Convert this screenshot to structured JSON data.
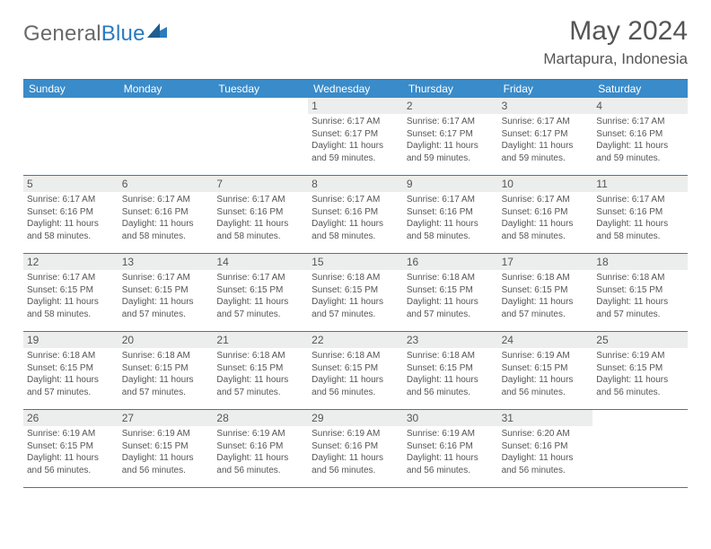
{
  "brand": {
    "general": "General",
    "blue": "Blue"
  },
  "title": "May 2024",
  "location": "Martapura, Indonesia",
  "colors": {
    "header_bg": "#3a8bc9",
    "border": "#3c78aa",
    "daynum_bg": "#eceded",
    "text": "#555555",
    "page_bg": "#ffffff"
  },
  "weekday_labels": [
    "Sunday",
    "Monday",
    "Tuesday",
    "Wednesday",
    "Thursday",
    "Friday",
    "Saturday"
  ],
  "weeks": [
    [
      {
        "n": "",
        "sunrise": "",
        "sunset": "",
        "daylight": ""
      },
      {
        "n": "",
        "sunrise": "",
        "sunset": "",
        "daylight": ""
      },
      {
        "n": "",
        "sunrise": "",
        "sunset": "",
        "daylight": ""
      },
      {
        "n": "1",
        "sunrise": "Sunrise: 6:17 AM",
        "sunset": "Sunset: 6:17 PM",
        "daylight": "Daylight: 11 hours and 59 minutes."
      },
      {
        "n": "2",
        "sunrise": "Sunrise: 6:17 AM",
        "sunset": "Sunset: 6:17 PM",
        "daylight": "Daylight: 11 hours and 59 minutes."
      },
      {
        "n": "3",
        "sunrise": "Sunrise: 6:17 AM",
        "sunset": "Sunset: 6:17 PM",
        "daylight": "Daylight: 11 hours and 59 minutes."
      },
      {
        "n": "4",
        "sunrise": "Sunrise: 6:17 AM",
        "sunset": "Sunset: 6:16 PM",
        "daylight": "Daylight: 11 hours and 59 minutes."
      }
    ],
    [
      {
        "n": "5",
        "sunrise": "Sunrise: 6:17 AM",
        "sunset": "Sunset: 6:16 PM",
        "daylight": "Daylight: 11 hours and 58 minutes."
      },
      {
        "n": "6",
        "sunrise": "Sunrise: 6:17 AM",
        "sunset": "Sunset: 6:16 PM",
        "daylight": "Daylight: 11 hours and 58 minutes."
      },
      {
        "n": "7",
        "sunrise": "Sunrise: 6:17 AM",
        "sunset": "Sunset: 6:16 PM",
        "daylight": "Daylight: 11 hours and 58 minutes."
      },
      {
        "n": "8",
        "sunrise": "Sunrise: 6:17 AM",
        "sunset": "Sunset: 6:16 PM",
        "daylight": "Daylight: 11 hours and 58 minutes."
      },
      {
        "n": "9",
        "sunrise": "Sunrise: 6:17 AM",
        "sunset": "Sunset: 6:16 PM",
        "daylight": "Daylight: 11 hours and 58 minutes."
      },
      {
        "n": "10",
        "sunrise": "Sunrise: 6:17 AM",
        "sunset": "Sunset: 6:16 PM",
        "daylight": "Daylight: 11 hours and 58 minutes."
      },
      {
        "n": "11",
        "sunrise": "Sunrise: 6:17 AM",
        "sunset": "Sunset: 6:16 PM",
        "daylight": "Daylight: 11 hours and 58 minutes."
      }
    ],
    [
      {
        "n": "12",
        "sunrise": "Sunrise: 6:17 AM",
        "sunset": "Sunset: 6:15 PM",
        "daylight": "Daylight: 11 hours and 58 minutes."
      },
      {
        "n": "13",
        "sunrise": "Sunrise: 6:17 AM",
        "sunset": "Sunset: 6:15 PM",
        "daylight": "Daylight: 11 hours and 57 minutes."
      },
      {
        "n": "14",
        "sunrise": "Sunrise: 6:17 AM",
        "sunset": "Sunset: 6:15 PM",
        "daylight": "Daylight: 11 hours and 57 minutes."
      },
      {
        "n": "15",
        "sunrise": "Sunrise: 6:18 AM",
        "sunset": "Sunset: 6:15 PM",
        "daylight": "Daylight: 11 hours and 57 minutes."
      },
      {
        "n": "16",
        "sunrise": "Sunrise: 6:18 AM",
        "sunset": "Sunset: 6:15 PM",
        "daylight": "Daylight: 11 hours and 57 minutes."
      },
      {
        "n": "17",
        "sunrise": "Sunrise: 6:18 AM",
        "sunset": "Sunset: 6:15 PM",
        "daylight": "Daylight: 11 hours and 57 minutes."
      },
      {
        "n": "18",
        "sunrise": "Sunrise: 6:18 AM",
        "sunset": "Sunset: 6:15 PM",
        "daylight": "Daylight: 11 hours and 57 minutes."
      }
    ],
    [
      {
        "n": "19",
        "sunrise": "Sunrise: 6:18 AM",
        "sunset": "Sunset: 6:15 PM",
        "daylight": "Daylight: 11 hours and 57 minutes."
      },
      {
        "n": "20",
        "sunrise": "Sunrise: 6:18 AM",
        "sunset": "Sunset: 6:15 PM",
        "daylight": "Daylight: 11 hours and 57 minutes."
      },
      {
        "n": "21",
        "sunrise": "Sunrise: 6:18 AM",
        "sunset": "Sunset: 6:15 PM",
        "daylight": "Daylight: 11 hours and 57 minutes."
      },
      {
        "n": "22",
        "sunrise": "Sunrise: 6:18 AM",
        "sunset": "Sunset: 6:15 PM",
        "daylight": "Daylight: 11 hours and 56 minutes."
      },
      {
        "n": "23",
        "sunrise": "Sunrise: 6:18 AM",
        "sunset": "Sunset: 6:15 PM",
        "daylight": "Daylight: 11 hours and 56 minutes."
      },
      {
        "n": "24",
        "sunrise": "Sunrise: 6:19 AM",
        "sunset": "Sunset: 6:15 PM",
        "daylight": "Daylight: 11 hours and 56 minutes."
      },
      {
        "n": "25",
        "sunrise": "Sunrise: 6:19 AM",
        "sunset": "Sunset: 6:15 PM",
        "daylight": "Daylight: 11 hours and 56 minutes."
      }
    ],
    [
      {
        "n": "26",
        "sunrise": "Sunrise: 6:19 AM",
        "sunset": "Sunset: 6:15 PM",
        "daylight": "Daylight: 11 hours and 56 minutes."
      },
      {
        "n": "27",
        "sunrise": "Sunrise: 6:19 AM",
        "sunset": "Sunset: 6:15 PM",
        "daylight": "Daylight: 11 hours and 56 minutes."
      },
      {
        "n": "28",
        "sunrise": "Sunrise: 6:19 AM",
        "sunset": "Sunset: 6:16 PM",
        "daylight": "Daylight: 11 hours and 56 minutes."
      },
      {
        "n": "29",
        "sunrise": "Sunrise: 6:19 AM",
        "sunset": "Sunset: 6:16 PM",
        "daylight": "Daylight: 11 hours and 56 minutes."
      },
      {
        "n": "30",
        "sunrise": "Sunrise: 6:19 AM",
        "sunset": "Sunset: 6:16 PM",
        "daylight": "Daylight: 11 hours and 56 minutes."
      },
      {
        "n": "31",
        "sunrise": "Sunrise: 6:20 AM",
        "sunset": "Sunset: 6:16 PM",
        "daylight": "Daylight: 11 hours and 56 minutes."
      },
      {
        "n": "",
        "sunrise": "",
        "sunset": "",
        "daylight": ""
      }
    ]
  ]
}
